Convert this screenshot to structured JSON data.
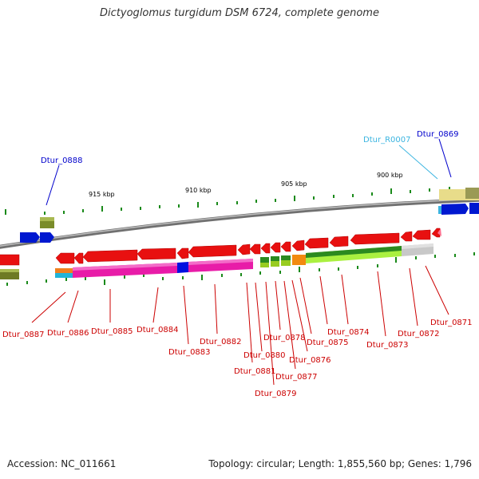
{
  "title": "Dictyoglomus turgidum DSM 6724, complete genome",
  "footer": {
    "accession": "Accession: NC_011661",
    "summary": "Topology: circular; Length: 1,855,560 bp; Genes: 1,796"
  },
  "scale_labels": [
    "915 kbp",
    "910 kbp",
    "905 kbp",
    "900 kbp"
  ],
  "colors": {
    "gene_red": "#e81010",
    "backbone": "#888888",
    "rna_cyan": "#3ab4e0",
    "top_gene_blue": "#0000cc",
    "bottom_gene_red": "#cc0000",
    "tick_green": "#1a8a1a"
  },
  "top_labels": [
    {
      "id": "Dtur_0888",
      "color": "#0000cc"
    },
    {
      "id": "Dtur_R0007",
      "color": "#3ab4e0"
    },
    {
      "id": "Dtur_0869",
      "color": "#0000cc"
    }
  ],
  "bottom_labels": [
    "Dtur_0887",
    "Dtur_0886",
    "Dtur_0885",
    "Dtur_0884",
    "Dtur_0883",
    "Dtur_0882",
    "Dtur_0881",
    "Dtur_0880",
    "Dtur_0879",
    "Dtur_0878",
    "Dtur_0877",
    "Dtur_0876",
    "Dtur_0875",
    "Dtur_0874",
    "Dtur_0873",
    "Dtur_0872",
    "Dtur_0871"
  ]
}
